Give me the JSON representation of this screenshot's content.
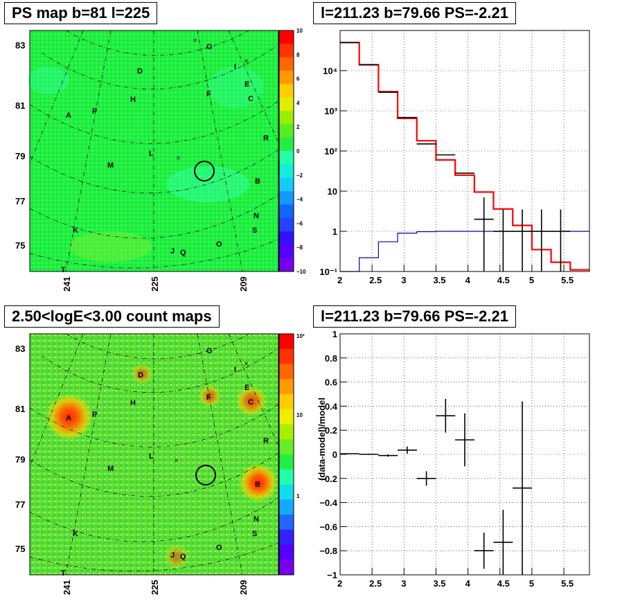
{
  "panels": {
    "tl": {
      "title": "PS map b=81 l=225"
    },
    "tr": {
      "title": "l=211.23 b=79.66 PS=-2.21"
    },
    "bl": {
      "title": "2.50<logE<3.00 count maps"
    },
    "br": {
      "title": "l=211.23 b=79.66 PS=-2.21"
    }
  },
  "map_axes": {
    "b_ticks": [
      "83",
      "81",
      "79",
      "77",
      "75"
    ],
    "l_ticks": [
      "241",
      "225",
      "209"
    ]
  },
  "source_labels": [
    "A",
    "B",
    "C",
    "D",
    "E",
    "F",
    "G",
    "H",
    "I",
    "J",
    "K",
    "L",
    "M",
    "N",
    "O",
    "P",
    "Q",
    "R",
    "S",
    "T"
  ],
  "colorbar_ps": {
    "ticks": [
      "10",
      "8",
      "6",
      "4",
      "2",
      "0",
      "−2",
      "−4",
      "−6",
      "−8",
      "−10"
    ]
  },
  "colorbar_counts": {
    "ticks": [
      "10²",
      "10",
      "1"
    ]
  },
  "chart_data": [
    {
      "type": "heatmap",
      "title": "PS map b=81 l=225",
      "x_ticks": [
        "241",
        "225",
        "209"
      ],
      "y_ticks": [
        "83",
        "81",
        "79",
        "77",
        "75"
      ],
      "zlim": [
        -10,
        10
      ],
      "colors": {
        "background": "#22ee44",
        "cyan_patch": "#33ffaa"
      }
    },
    {
      "type": "line",
      "title": "l=211.23 b=79.66 PS=-2.21",
      "xlim": [
        2.0,
        5.9
      ],
      "ylim": [
        0.1,
        100000
      ],
      "ylog": true,
      "x_ticks": [
        "2",
        "2.5",
        "3",
        "3.5",
        "4",
        "4.5",
        "5",
        "5.5"
      ],
      "y_ticks": [
        "10⁻¹",
        "1",
        "10",
        "10²",
        "10³",
        "10⁴"
      ],
      "grid": true,
      "series": [
        {
          "color": "#ff0000",
          "edges": [
            2.0,
            2.3,
            2.6,
            2.9,
            3.2,
            3.5,
            3.8,
            4.1,
            4.4,
            4.7,
            5.0,
            5.3,
            5.6,
            5.9
          ],
          "values": [
            50000,
            14000,
            3000,
            650,
            180,
            60,
            25,
            9.5,
            3.6,
            1.4,
            0.35,
            0.17,
            0.11
          ]
        },
        {
          "color": "#0000aa",
          "edges": [
            2.0,
            2.3,
            2.6,
            2.9,
            3.2,
            3.5,
            3.8,
            4.1,
            4.4,
            4.7,
            5.0,
            5.3,
            5.6,
            5.9
          ],
          "values": [
            0.09,
            0.22,
            0.55,
            0.9,
            0.98,
            1,
            1,
            1,
            1,
            1,
            1,
            1,
            1
          ]
        },
        {
          "color": "#000000",
          "x": [
            2.15,
            2.45,
            2.75,
            3.05,
            3.35,
            3.65,
            3.95,
            4.25,
            4.55,
            4.85,
            5.15,
            5.45
          ],
          "y": [
            50000,
            14000,
            2900,
            680,
            150,
            80,
            28,
            2,
            1,
            1,
            1,
            1
          ]
        }
      ]
    },
    {
      "type": "heatmap",
      "title": "2.50<logE<3.00 count maps",
      "x_ticks": [
        "241",
        "225",
        "209"
      ],
      "y_ticks": [
        "83",
        "81",
        "79",
        "77",
        "75"
      ],
      "z_ticks": [
        "10²",
        "10",
        "1"
      ],
      "colors": {
        "background": "#55dd33",
        "hot": "#ff3300"
      }
    },
    {
      "type": "scatter",
      "title": "l=211.23 b=79.66 PS=-2.21",
      "ylabel": "(data-model)/model",
      "xlim": [
        2.0,
        5.9
      ],
      "ylim": [
        -1,
        1
      ],
      "x_ticks": [
        "2",
        "2.5",
        "3",
        "3.5",
        "4",
        "4.5",
        "5",
        "5.5"
      ],
      "y_ticks": [
        "1",
        "0.8",
        "0.6",
        "0.4",
        "0.2",
        "0",
        "−0.2",
        "−0.4",
        "−0.6",
        "−0.8",
        "−1"
      ],
      "grid": true,
      "points": [
        {
          "x": 2.15,
          "y": 0.005,
          "yerr": 0.003
        },
        {
          "x": 2.45,
          "y": 0.0,
          "yerr": 0.005
        },
        {
          "x": 2.75,
          "y": -0.01,
          "yerr": 0.01
        },
        {
          "x": 3.05,
          "y": 0.035,
          "yerr": 0.03
        },
        {
          "x": 3.35,
          "y": -0.2,
          "yerr": 0.06
        },
        {
          "x": 3.65,
          "y": 0.32,
          "yerr": 0.14
        },
        {
          "x": 3.95,
          "y": 0.12,
          "yerr": 0.22
        },
        {
          "x": 4.25,
          "y": -0.8,
          "yerr": 0.15
        },
        {
          "x": 4.55,
          "y": -0.73,
          "yerr": 0.27
        },
        {
          "x": 4.85,
          "y": -0.28,
          "yerr": 0.72
        }
      ]
    }
  ]
}
